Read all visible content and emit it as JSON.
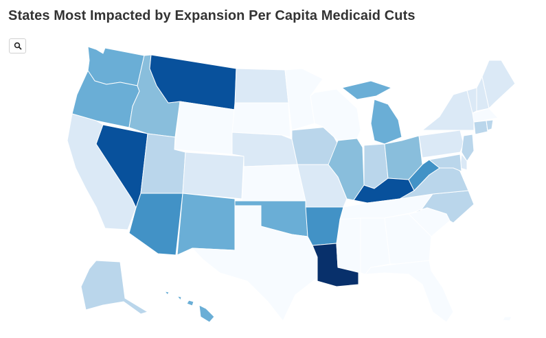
{
  "title": "States Most Impacted by Expansion Per Capita Medicaid Cuts",
  "search_icon": "search-icon",
  "colors": {
    "l0": "#f7fbff",
    "l1": "#dbe9f6",
    "l2": "#bad6eb",
    "l3": "#89bedc",
    "l4": "#6aaed6",
    "l5": "#4292c6",
    "l6": "#2171b5",
    "l7": "#08519c",
    "l8": "#08306b"
  },
  "states": {
    "WA": "l4",
    "OR": "l4",
    "CA": "l1",
    "NV": "l7",
    "ID": "l3",
    "MT": "l7",
    "WY": "l0",
    "UT": "l2",
    "CO": "l1",
    "AZ": "l5",
    "NM": "l4",
    "ND": "l1",
    "SD": "l0",
    "NE": "l1",
    "KS": "l0",
    "OK": "l4",
    "TX": "l0",
    "MN": "l0",
    "IA": "l2",
    "MO": "l1",
    "AR": "l5",
    "LA": "l8",
    "WI": "l0",
    "IL": "l3",
    "MI": "l4",
    "IN": "l2",
    "OH": "l3",
    "KY": "l7",
    "TN": "l0",
    "MS": "l0",
    "AL": "l0",
    "GA": "l0",
    "FL": "l0",
    "SC": "l0",
    "NC": "l2",
    "VA": "l2",
    "WV": "l5",
    "PA": "l1",
    "NY": "l1",
    "VT": "l1",
    "NH": "l1",
    "ME": "l1",
    "MA": "l0",
    "CT": "l2",
    "RI": "l2",
    "NJ": "l2",
    "DE": "l1",
    "MD": "l2",
    "AK": "l2",
    "HI": "l4"
  }
}
